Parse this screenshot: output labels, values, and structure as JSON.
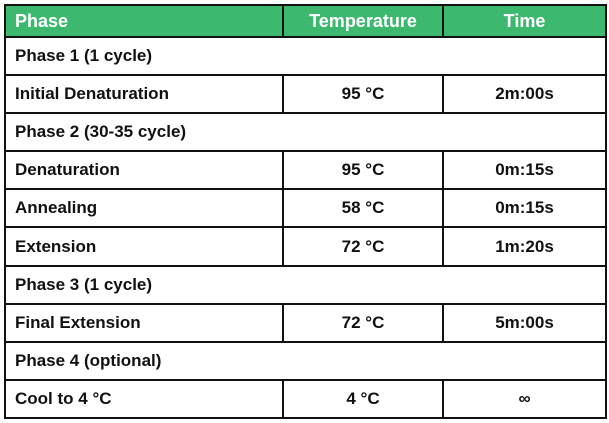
{
  "header": [
    "Phase",
    "Temperature",
    "Time"
  ],
  "sections": [
    {
      "title": "Phase 1 (1 cycle)",
      "rows": [
        [
          "Initial Denaturation",
          "95 °C",
          "2m:00s"
        ]
      ]
    },
    {
      "title": "Phase 2 (30-35 cycle)",
      "rows": [
        [
          "Denaturation",
          "95 °C",
          "0m:15s"
        ],
        [
          "Annealing",
          "58 °C",
          "0m:15s"
        ],
        [
          "Extension",
          "72 °C",
          "1m:20s"
        ]
      ]
    },
    {
      "title": "Phase 3 (1 cycle)",
      "rows": [
        [
          "Final Extension",
          "72 °C",
          "5m:00s"
        ]
      ]
    },
    {
      "title": "Phase 4 (optional)",
      "rows": [
        [
          "Cool to 4 °C",
          "4 °C",
          "∞"
        ]
      ]
    }
  ]
}
